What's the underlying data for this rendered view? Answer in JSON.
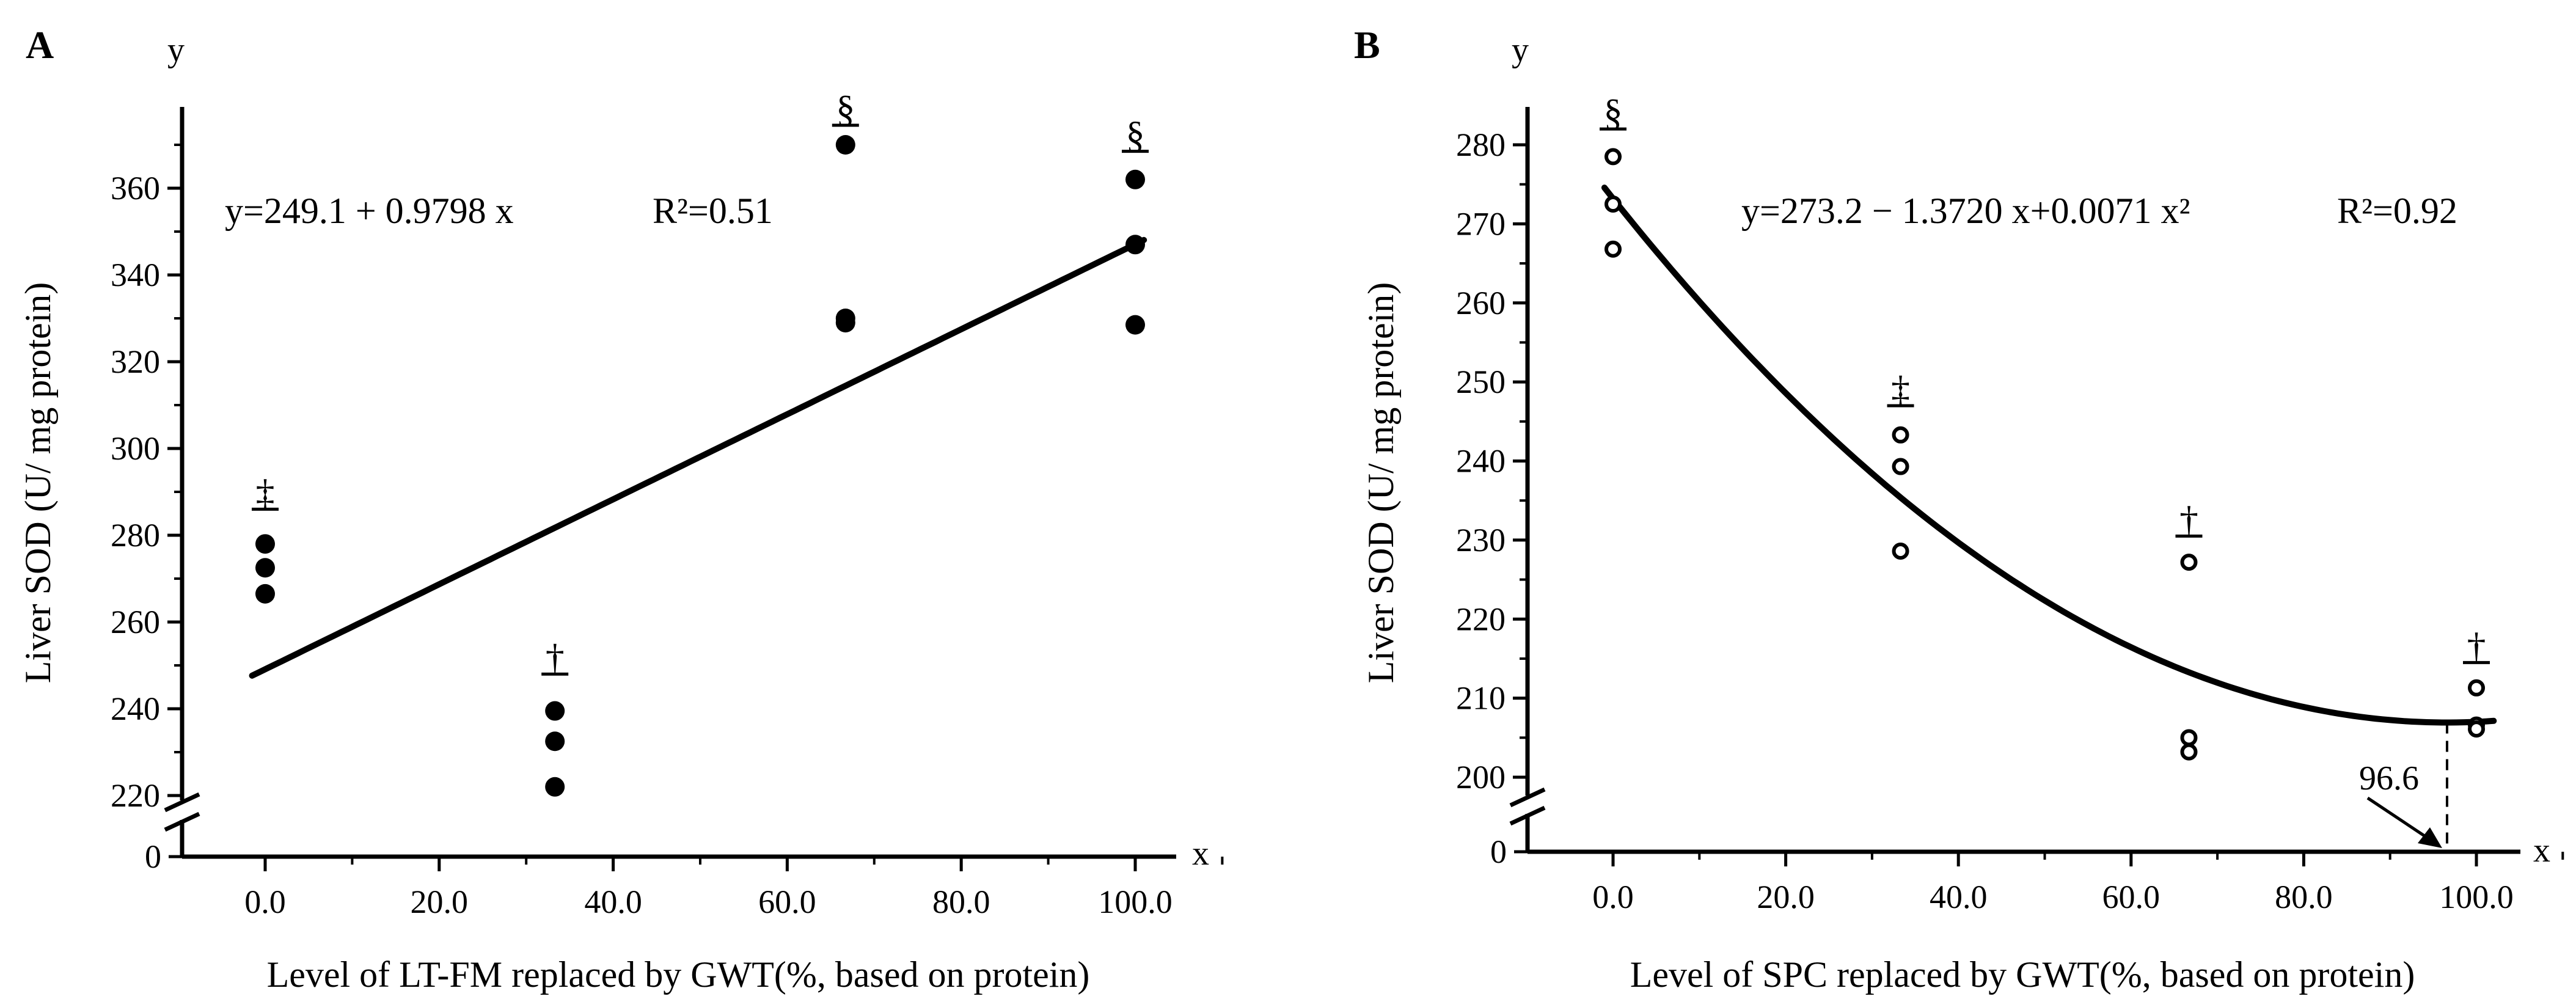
{
  "chart_data": [
    {
      "panel_label": "A",
      "type": "scatter",
      "y_axis_name": "y",
      "x_axis_name": "x",
      "xlabel": "Level of LT-FM replaced by GWT(%, based on protein)",
      "ylabel": "Liver SOD (U/ mg protein)",
      "xlim": [
        -10,
        110
      ],
      "ylim_segment": [
        210,
        380
      ],
      "axis_break": true,
      "x_ticks": [
        0,
        20,
        40,
        60,
        80,
        100
      ],
      "x_tick_labels": [
        "0.0",
        "20.0",
        "40.0",
        "60.0",
        "80.0",
        "100.0"
      ],
      "y_ticks": [
        220,
        240,
        260,
        280,
        300,
        320,
        340,
        360
      ],
      "y_tick_labels": [
        "220",
        "240",
        "260",
        "280",
        "300",
        "320",
        "340",
        "360"
      ],
      "y_zero_label": "0",
      "marker": "filled-circle",
      "series": [
        {
          "points": [
            [
              0,
              278
            ],
            [
              0,
              272.5
            ],
            [
              0,
              266.5
            ],
            [
              33.3,
              239.5
            ],
            [
              33.3,
              232.5
            ],
            [
              33.3,
              222
            ],
            [
              66.7,
              370
            ],
            [
              66.7,
              330
            ],
            [
              66.7,
              329
            ],
            [
              100,
              362
            ],
            [
              100,
              347
            ],
            [
              100,
              328.5
            ]
          ]
        }
      ],
      "fit": {
        "type": "linear",
        "a": 249.1,
        "b": 0.9798,
        "x_range": [
          0,
          100
        ]
      },
      "equation_text": "y=249.1 + 0.9798 x",
      "r2_text": "R²=0.51",
      "group_annotations": [
        {
          "x": 0,
          "mean": 286,
          "symbol": "‡"
        },
        {
          "x": 33.3,
          "mean": 248,
          "symbol": "†"
        },
        {
          "x": 66.7,
          "mean": 374.5,
          "symbol": "§"
        },
        {
          "x": 100,
          "mean": 368.5,
          "symbol": "§"
        }
      ]
    },
    {
      "panel_label": "B",
      "type": "scatter",
      "y_axis_name": "y",
      "x_axis_name": "x",
      "xlabel": "Level of SPC replaced by GWT(%, based on protein)",
      "ylabel": "Liver SOD (U/ mg protein)",
      "xlim": [
        -10,
        110
      ],
      "ylim_segment": [
        196,
        286
      ],
      "axis_break": true,
      "x_ticks": [
        0,
        20,
        40,
        60,
        80,
        100
      ],
      "x_tick_labels": [
        "0.0",
        "20.0",
        "40.0",
        "60.0",
        "80.0",
        "100.0"
      ],
      "y_ticks": [
        200,
        210,
        220,
        230,
        240,
        250,
        260,
        270,
        280
      ],
      "y_tick_labels": [
        "200",
        "210",
        "220",
        "230",
        "240",
        "250",
        "260",
        "270",
        "280"
      ],
      "y_zero_label": "0",
      "marker": "open-circle",
      "series": [
        {
          "points": [
            [
              0,
              278.5
            ],
            [
              0,
              272.5
            ],
            [
              0,
              266.8
            ],
            [
              33.3,
              243.3
            ],
            [
              33.3,
              239.3
            ],
            [
              33.3,
              228.6
            ],
            [
              66.7,
              227.2
            ],
            [
              66.7,
              205
            ],
            [
              66.7,
              203.2
            ],
            [
              100,
              211.3
            ],
            [
              100,
              206.6
            ],
            [
              100,
              206.1
            ]
          ]
        }
      ],
      "fit": {
        "type": "quadratic",
        "a": 273.2,
        "b": -1.372,
        "c": 0.0071,
        "x_range": [
          0,
          100
        ]
      },
      "equation_text": "y=273.2 − 1.3720 x+0.0071 x²",
      "r2_text": "R²=0.92",
      "optimum_label": "96.6",
      "optimum_x": 96.6,
      "group_annotations": [
        {
          "x": 0,
          "mean": 282,
          "symbol": "§"
        },
        {
          "x": 33.3,
          "mean": 247,
          "symbol": "‡"
        },
        {
          "x": 66.7,
          "mean": 230.5,
          "symbol": "†"
        },
        {
          "x": 100,
          "mean": 214.5,
          "symbol": "†"
        }
      ]
    }
  ]
}
